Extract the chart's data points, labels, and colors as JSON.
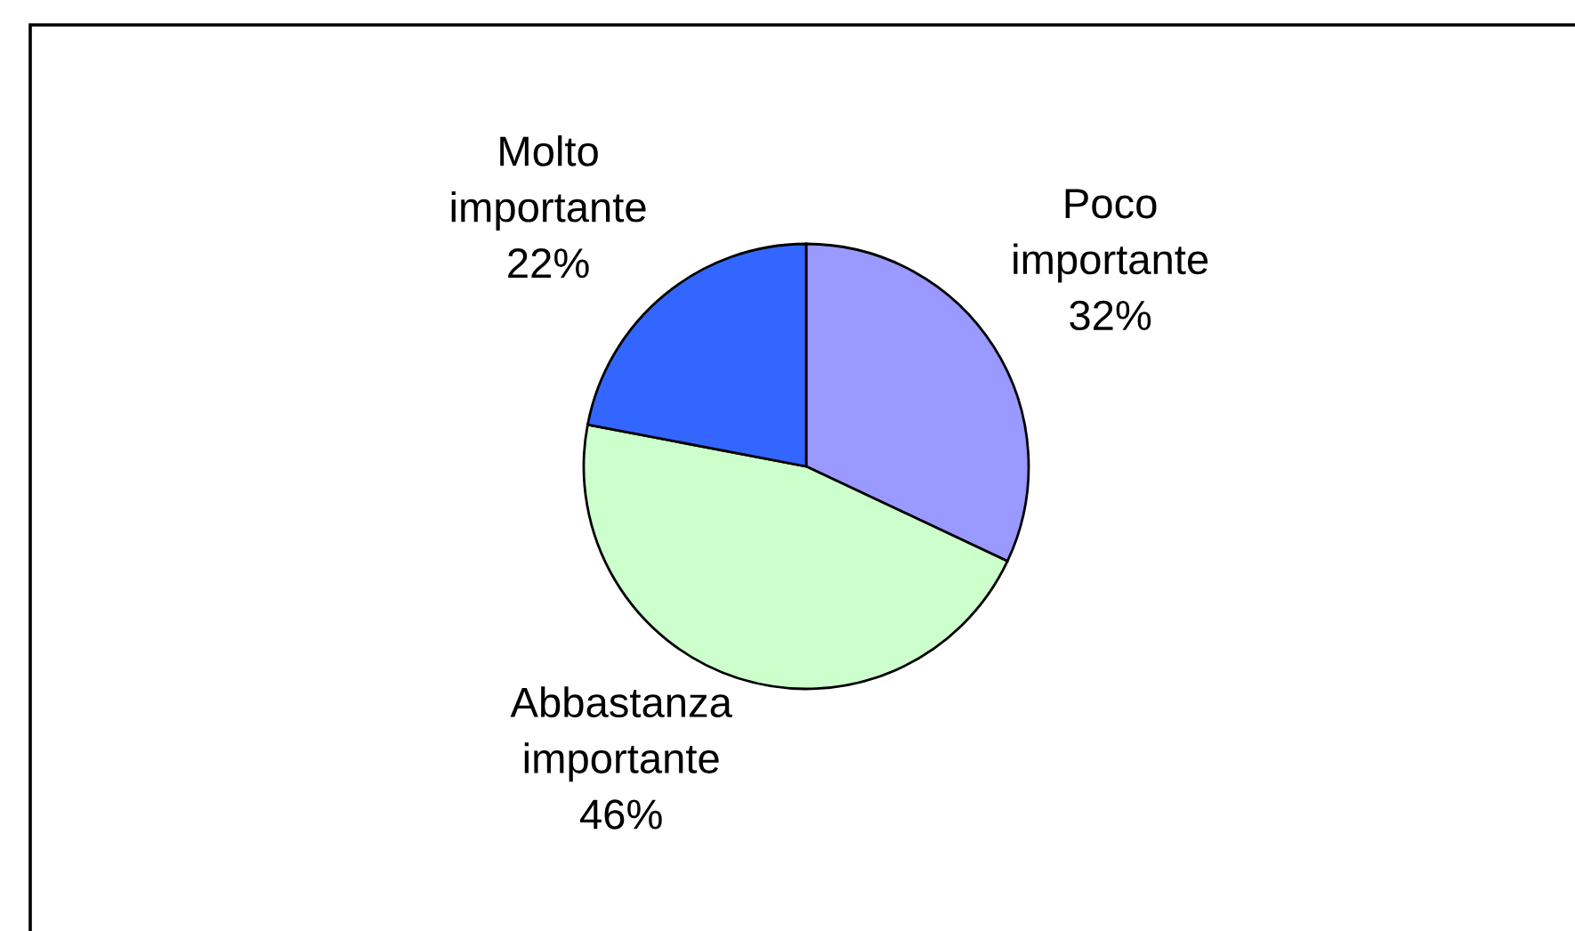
{
  "chart_data": {
    "type": "pie",
    "categories": [
      "Poco importante",
      "Abbastanza importante",
      "Molto importante"
    ],
    "values": [
      32,
      46,
      22
    ],
    "value_labels": [
      "32%",
      "46%",
      "22%"
    ],
    "colors": [
      "#9999ff",
      "#ccffcc",
      "#3366ff"
    ]
  }
}
